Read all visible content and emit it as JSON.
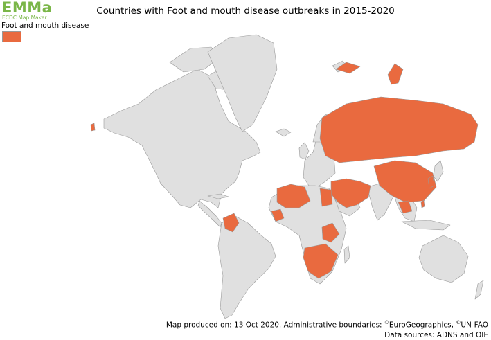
{
  "logo": {
    "name": "EMMa",
    "subtitle": "ECDC Map Maker"
  },
  "title": "Countries with Foot and mouth disease outbreaks in 2015-2020",
  "legend": {
    "label": "Foot and mouth disease",
    "color": "#e96a3f"
  },
  "colors": {
    "land": "#e0e0e0",
    "border": "#999999",
    "affected": "#e96a3f",
    "water": "#ffffff"
  },
  "footer": {
    "line1_prefix": "Map produced on: 13 Oct 2020. Administrative boundaries: ",
    "copyright_mark": "©",
    "source1": "EuroGeographics, ",
    "source2": "UN-FAO",
    "line2": "Data sources: ADNS and OIE"
  }
}
